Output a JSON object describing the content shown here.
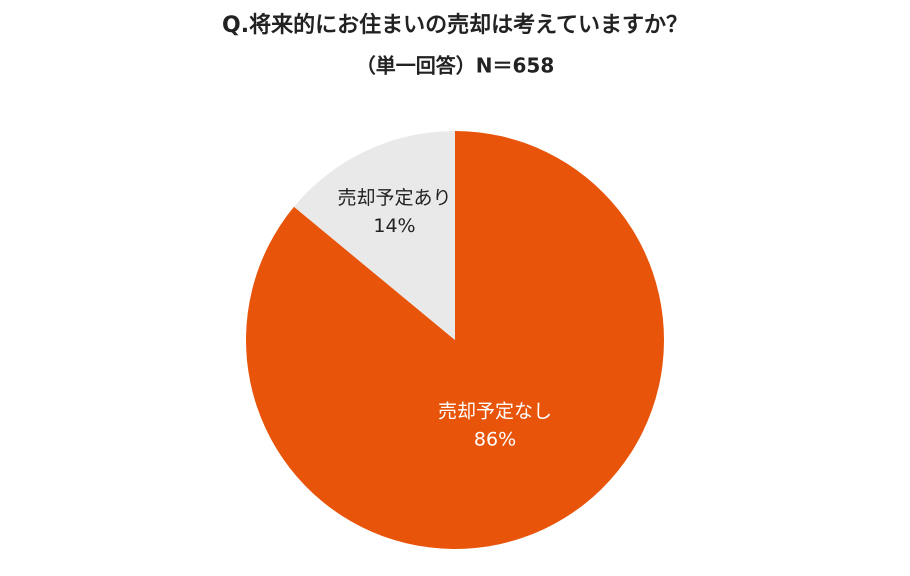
{
  "chart_data": {
    "type": "pie",
    "title": "Q.将来的にお住まいの売却は考えていますか？",
    "subtitle": "（単一回答）N＝658",
    "categories": [
      "売却予定なし",
      "売却予定あり"
    ],
    "values": [
      86,
      14
    ],
    "value_labels": [
      "86%",
      "14%"
    ],
    "colors": [
      "#e8540a",
      "#e9e9e9"
    ],
    "label_colors": [
      "#ffffff",
      "#222222"
    ]
  }
}
